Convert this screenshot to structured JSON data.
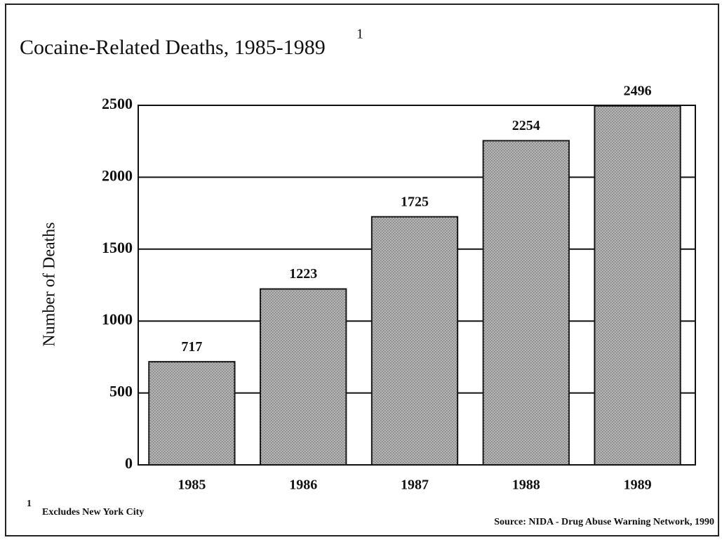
{
  "chart_data": {
    "type": "bar",
    "title": "Cocaine-Related Deaths, 1985-1989",
    "y_label": "Number of Deaths",
    "categories": [
      "1985",
      "1986",
      "1987",
      "1988",
      "1989"
    ],
    "values": [
      717,
      1223,
      1725,
      2254,
      2496
    ],
    "color": "#b4b4b4",
    "ylim": [
      0,
      2500
    ],
    "yticks": [
      0,
      500,
      1000,
      1500,
      2000,
      2500
    ],
    "grid": true,
    "footnote": {
      "marker": "1",
      "text": "Excludes New York City"
    },
    "source": "Source:  NIDA - Drug Abuse Warning Network, 1990"
  }
}
